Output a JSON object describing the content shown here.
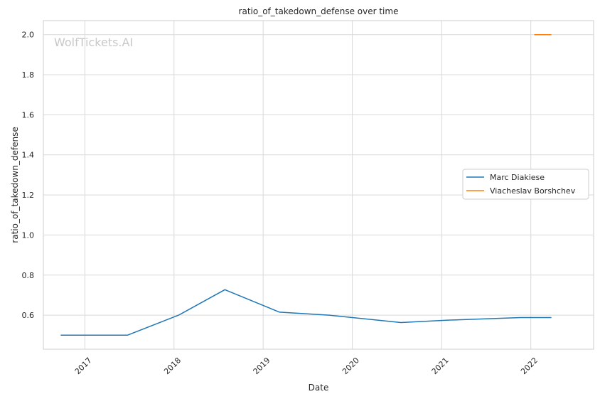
{
  "chart_data": {
    "type": "line",
    "title": "ratio_of_takedown_defense over time",
    "xlabel": "Date",
    "ylabel": "ratio_of_takedown_defense",
    "watermark": "WolfTickets.AI",
    "xlim": [
      "2016-07-15",
      "2022-09-15"
    ],
    "ylim": [
      0.43,
      2.07
    ],
    "x_ticks": [
      "2017-01-01",
      "2018-01-01",
      "2019-01-01",
      "2020-01-01",
      "2021-01-01",
      "2022-01-01"
    ],
    "x_tick_labels": [
      "2017",
      "2018",
      "2019",
      "2020",
      "2021",
      "2022"
    ],
    "y_ticks": [
      0.6,
      0.8,
      1.0,
      1.2,
      1.4,
      1.6,
      1.8,
      2.0
    ],
    "y_tick_labels": [
      "0.6",
      "0.8",
      "1.0",
      "1.2",
      "1.4",
      "1.6",
      "1.8",
      "2.0"
    ],
    "grid": true,
    "legend_position": "center-right",
    "series": [
      {
        "name": "Marc Diakiese",
        "color": "#1f77b4",
        "x": [
          "2016-09-24",
          "2017-06-24",
          "2018-01-20",
          "2018-07-28",
          "2019-03-09",
          "2019-09-28",
          "2020-07-18",
          "2021-01-20",
          "2021-11-20",
          "2022-03-26"
        ],
        "y": [
          0.5,
          0.5,
          0.6,
          0.727,
          0.615,
          0.6,
          0.563,
          0.575,
          0.588,
          0.588
        ]
      },
      {
        "name": "Viacheslav Borshchev",
        "color": "#ff7f0e",
        "x": [
          "2022-01-15",
          "2022-03-26"
        ],
        "y": [
          2.0,
          2.0
        ]
      }
    ]
  }
}
